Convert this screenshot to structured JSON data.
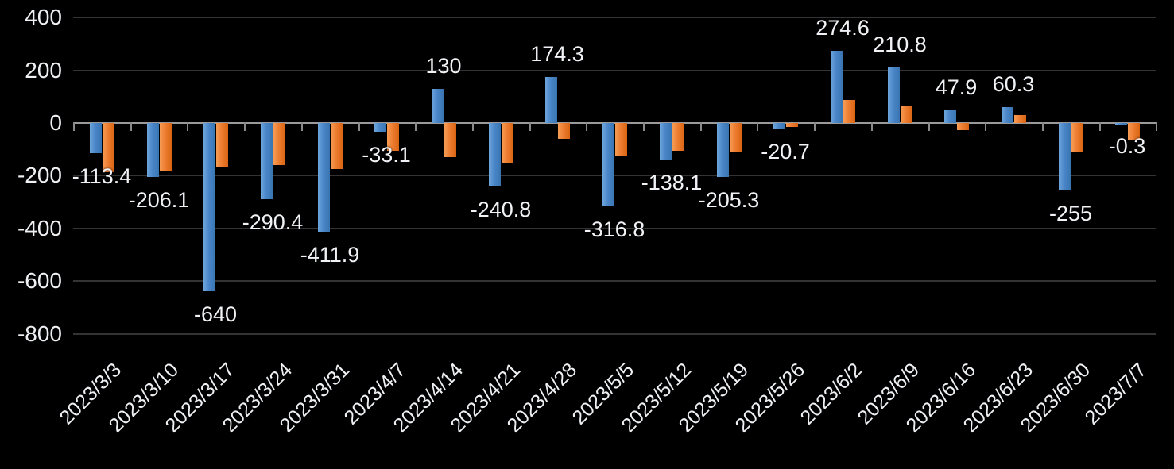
{
  "chart_data": {
    "type": "bar",
    "title": "",
    "legend": "none",
    "grid": true,
    "background_color": "#000000",
    "text_color": "#f0f2f5",
    "gridline_color": "#333333",
    "axis_line_color": "#9a9a9a",
    "categories": [
      "2023/3/3",
      "2023/3/10",
      "2023/3/17",
      "2023/3/24",
      "2023/3/31",
      "2023/4/7",
      "2023/4/14",
      "2023/4/21",
      "2023/4/28",
      "2023/5/5",
      "2023/5/12",
      "2023/5/19",
      "2023/5/26",
      "2023/6/2",
      "2023/6/9",
      "2023/6/16",
      "2023/6/23",
      "2023/6/30",
      "2023/7/7"
    ],
    "series": [
      {
        "name": "blue",
        "color": "#4a86c8",
        "values": [
          -113.4,
          -206.1,
          -640,
          -290.4,
          -411.9,
          -33.1,
          130,
          -240.8,
          174.3,
          -316.8,
          -138.1,
          -205.3,
          -20.7,
          274.6,
          210.8,
          47.9,
          60.3,
          -255,
          -0.3
        ],
        "data_labels": [
          "-113.4",
          "-206.1",
          "-640",
          "-290.4",
          "-411.9",
          "-33.1",
          "130",
          "-240.8",
          "174.3",
          "-316.8",
          "-138.1",
          "-205.3",
          "-20.7",
          "274.6",
          "210.8",
          "47.9",
          "60.3",
          "-255",
          "-0.3"
        ]
      },
      {
        "name": "orange",
        "color": "#ed7d31",
        "values": [
          -188,
          -182,
          -168,
          -160,
          -174,
          -106,
          -130,
          -152,
          -59,
          -123,
          -105,
          -110,
          -16,
          88,
          62,
          -27,
          30,
          -110,
          -65
        ],
        "data_labels": []
      }
    ],
    "y_axis": {
      "min": -800,
      "max": 400,
      "tick_interval": 200,
      "ticks": [
        400,
        200,
        0,
        -200,
        -400,
        -600,
        -800
      ],
      "tick_labels": [
        "400",
        "200",
        "0",
        "-200",
        "-400",
        "-600",
        "-800"
      ]
    },
    "x_axis": {
      "tick_rotation_deg": 45
    }
  }
}
